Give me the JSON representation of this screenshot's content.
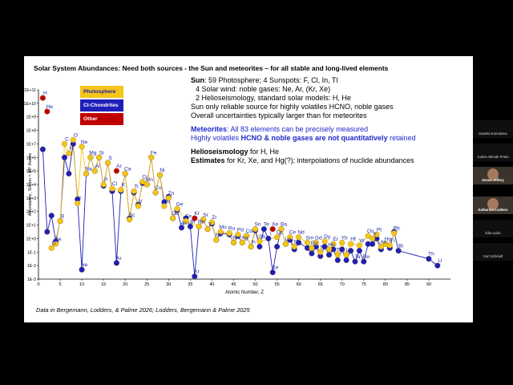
{
  "slide": {
    "title": "Solar System Abundances: Need both sources - the Sun and meteorites – for all stable and long-lived elements",
    "legend": [
      {
        "label": "Photosphere",
        "color": "#f5c518"
      },
      {
        "label": "CI-Chondrites",
        "color": "#1f1fb8"
      },
      {
        "label": "Other",
        "color": "#c00000"
      }
    ],
    "notes": {
      "sun_head": "Sun",
      "sun_rest": ": 59 Photosphere;  4 Sunspots: F, Cl, In, Tl",
      "sun_wind": "4 Solar wind: noble gases: Ne, Ar, (Kr, Xe)",
      "sun_helio": "2 Helioseismology, standard solar models: H, He",
      "sun_only": "Sun only reliable source for highly volatiles HCNO, noble gases",
      "sun_unc": "Overall uncertainties typically larger than for meteorites",
      "met_head": "Meteorites",
      "met_rest": ": All 83 elements can be precisely measured",
      "met_l2_a": "Highly volatiles ",
      "met_l2_b": "HCNO & noble gases are not quantitatively",
      "met_l2_c": " retained",
      "helio_head": "Helioseismology",
      "helio_rest": " for H, He",
      "est_head": "Estimates",
      "est_rest": " for Kr, Xe, and Hg(?); interpolations of nuclide abundances"
    },
    "footnote": "Data in Bergemann, Lodders, & Palme 2026;  Lodders, Bergemann & Palme 2025"
  },
  "participants": [
    {
      "name": "Daniela Korcakova",
      "video": false
    },
    {
      "name": "Carlos Allende Prieto",
      "video": false
    },
    {
      "name": "Simon Jeffery",
      "video": true
    },
    {
      "name": "Katharina Lodders",
      "video": true
    },
    {
      "name": "lidia cudro",
      "video": false
    },
    {
      "name": "Carl Schmidt",
      "video": false
    }
  ],
  "chart_data": {
    "type": "scatter",
    "title": "",
    "xlabel": "Atomic Number, Z",
    "ylabel": "Abundance, Silicon = 10⁶ Atoms",
    "xlim": [
      0,
      95
    ],
    "ylim": [
      -3,
      11
    ],
    "x_ticks": [
      0,
      5,
      10,
      15,
      20,
      25,
      30,
      35,
      40,
      45,
      50,
      55,
      60,
      65,
      70,
      75,
      80,
      85,
      90
    ],
    "y_ticks": [
      "1E-3",
      "1E-2",
      "1E-1",
      "1E+0",
      "1E+1",
      "1E+2",
      "1E+3",
      "1E+4",
      "1E+5",
      "1E+6",
      "1E+7",
      "1E+8",
      "1E+9",
      "1E+10",
      "1E+11"
    ],
    "series": [
      {
        "name": "Photosphere",
        "color": "#f5c518",
        "points": [
          [
            3,
            -0.7
          ],
          [
            4,
            -0.4
          ],
          [
            5,
            1.3
          ],
          [
            6,
            7.0
          ],
          [
            7,
            6.3
          ],
          [
            8,
            7.3
          ],
          [
            9,
            2.6
          ],
          [
            10,
            6.8
          ],
          [
            11,
            4.8
          ],
          [
            12,
            6.0
          ],
          [
            13,
            5.0
          ],
          [
            14,
            6.0
          ],
          [
            15,
            4.0
          ],
          [
            16,
            5.6
          ],
          [
            17,
            3.7
          ],
          [
            19,
            3.6
          ],
          [
            20,
            4.8
          ],
          [
            21,
            1.4
          ],
          [
            22,
            3.5
          ],
          [
            23,
            2.4
          ],
          [
            24,
            4.2
          ],
          [
            25,
            4.0
          ],
          [
            26,
            6.0
          ],
          [
            27,
            3.4
          ],
          [
            28,
            4.7
          ],
          [
            29,
            2.4
          ],
          [
            30,
            3.0
          ],
          [
            31,
            1.5
          ],
          [
            32,
            2.2
          ],
          [
            34,
            1.3
          ],
          [
            37,
            0.9
          ],
          [
            38,
            1.4
          ],
          [
            39,
            0.7
          ],
          [
            40,
            1.2
          ],
          [
            41,
            -0.1
          ],
          [
            42,
            0.5
          ],
          [
            44,
            0.4
          ],
          [
            45,
            -0.3
          ],
          [
            46,
            0.3
          ],
          [
            47,
            -0.3
          ],
          [
            48,
            0.2
          ],
          [
            49,
            -0.6
          ],
          [
            50,
            0.7
          ],
          [
            51,
            -0.2
          ],
          [
            55,
            0.1
          ],
          [
            56,
            0.7
          ],
          [
            57,
            -0.4
          ],
          [
            58,
            0.1
          ],
          [
            59,
            -0.6
          ],
          [
            60,
            0.1
          ],
          [
            62,
            -0.3
          ],
          [
            63,
            -0.7
          ],
          [
            64,
            -0.3
          ],
          [
            65,
            -1.0
          ],
          [
            66,
            -0.2
          ],
          [
            67,
            -0.8
          ],
          [
            68,
            -0.4
          ],
          [
            69,
            -1.2
          ],
          [
            70,
            -0.3
          ],
          [
            71,
            -1.2
          ],
          [
            72,
            -0.4
          ],
          [
            74,
            -0.5
          ],
          [
            76,
            0.2
          ],
          [
            77,
            0.0
          ],
          [
            78,
            0.3
          ],
          [
            79,
            -0.6
          ],
          [
            80,
            -0.4
          ],
          [
            81,
            -0.5
          ],
          [
            82,
            0.4
          ]
        ]
      },
      {
        "name": "CI-Chondrites",
        "color": "#1f1fb8",
        "points": [
          [
            1,
            6.6
          ],
          [
            2,
            0.5
          ],
          [
            3,
            1.7
          ],
          [
            4,
            -0.2
          ],
          [
            5,
            1.3
          ],
          [
            6,
            6.0
          ],
          [
            7,
            4.8
          ],
          [
            8,
            7.0
          ],
          [
            9,
            2.9
          ],
          [
            10,
            -2.3
          ],
          [
            11,
            4.8
          ],
          [
            12,
            6.0
          ],
          [
            13,
            5.0
          ],
          [
            14,
            6.0
          ],
          [
            15,
            3.9
          ],
          [
            16,
            5.6
          ],
          [
            17,
            3.5
          ],
          [
            18,
            -1.8
          ],
          [
            19,
            3.5
          ],
          [
            20,
            4.8
          ],
          [
            21,
            1.5
          ],
          [
            22,
            3.4
          ],
          [
            23,
            2.5
          ],
          [
            24,
            4.1
          ],
          [
            25,
            4.0
          ],
          [
            26,
            6.0
          ],
          [
            27,
            3.4
          ],
          [
            28,
            4.7
          ],
          [
            29,
            2.7
          ],
          [
            30,
            3.1
          ],
          [
            31,
            1.5
          ],
          [
            32,
            2.1
          ],
          [
            33,
            0.8
          ],
          [
            34,
            1.5
          ],
          [
            35,
            0.9
          ],
          [
            36,
            -2.8
          ],
          [
            37,
            0.9
          ],
          [
            38,
            1.4
          ],
          [
            39,
            0.7
          ],
          [
            40,
            1.1
          ],
          [
            41,
            -0.1
          ],
          [
            42,
            0.4
          ],
          [
            44,
            0.3
          ],
          [
            45,
            -0.3
          ],
          [
            46,
            0.2
          ],
          [
            47,
            -0.3
          ],
          [
            48,
            0.2
          ],
          [
            49,
            -0.6
          ],
          [
            50,
            0.6
          ],
          [
            51,
            -0.6
          ],
          [
            52,
            0.7
          ],
          [
            53,
            0.0
          ],
          [
            54,
            -2.5
          ],
          [
            55,
            -0.6
          ],
          [
            56,
            0.7
          ],
          [
            57,
            -0.4
          ],
          [
            58,
            -0.1
          ],
          [
            59,
            -0.8
          ],
          [
            60,
            -0.3
          ],
          [
            62,
            -0.7
          ],
          [
            63,
            -1.1
          ],
          [
            64,
            -0.6
          ],
          [
            65,
            -1.3
          ],
          [
            66,
            -0.6
          ],
          [
            67,
            -1.2
          ],
          [
            68,
            -0.8
          ],
          [
            69,
            -1.6
          ],
          [
            70,
            -0.8
          ],
          [
            71,
            -1.6
          ],
          [
            72,
            -0.9
          ],
          [
            73,
            -1.7
          ],
          [
            74,
            -0.9
          ],
          [
            75,
            -1.7
          ],
          [
            76,
            -0.4
          ],
          [
            77,
            -0.4
          ],
          [
            78,
            0.0
          ],
          [
            79,
            -0.8
          ],
          [
            80,
            -0.4
          ],
          [
            81,
            -0.7
          ],
          [
            82,
            0.5
          ],
          [
            83,
            -0.9
          ],
          [
            90,
            -1.5
          ],
          [
            92,
            -2.0
          ]
        ]
      },
      {
        "name": "Other",
        "color": "#c00000",
        "points": [
          [
            1,
            10.4
          ],
          [
            2,
            9.4
          ],
          [
            18,
            5.0
          ],
          [
            36,
            1.5
          ],
          [
            54,
            0.7
          ]
        ]
      }
    ],
    "labels": [
      [
        "H",
        1,
        10.4
      ],
      [
        "He",
        2,
        9.4
      ],
      [
        "Li",
        3,
        -0.7
      ],
      [
        "Be",
        4,
        -0.4
      ],
      [
        "B",
        5,
        1.3
      ],
      [
        "C",
        6,
        7.0
      ],
      [
        "N",
        7,
        6.3
      ],
      [
        "O",
        8,
        7.3
      ],
      [
        "F",
        9,
        2.6
      ],
      [
        "Ne",
        10,
        6.8
      ],
      [
        "Ne",
        10,
        -2.3
      ],
      [
        "Na",
        11,
        4.8
      ],
      [
        "Mg",
        12,
        6.0
      ],
      [
        "Al",
        13,
        5.0
      ],
      [
        "Si",
        14,
        6.0
      ],
      [
        "P",
        15,
        4.0
      ],
      [
        "S",
        16,
        5.6
      ],
      [
        "Cl",
        17,
        3.7
      ],
      [
        "Ar",
        18,
        5.0
      ],
      [
        "Ar",
        18,
        -1.8
      ],
      [
        "K",
        19,
        3.6
      ],
      [
        "Ca",
        20,
        4.8
      ],
      [
        "Sc",
        21,
        1.4
      ],
      [
        "Ti",
        22,
        3.5
      ],
      [
        "V",
        23,
        2.4
      ],
      [
        "Cr",
        24,
        4.2
      ],
      [
        "Mn",
        25,
        4.0
      ],
      [
        "Fe",
        26,
        6.0
      ],
      [
        "Co",
        27,
        3.4
      ],
      [
        "Ni",
        28,
        4.7
      ],
      [
        "Cu",
        29,
        2.4
      ],
      [
        "Zn",
        30,
        3.0
      ],
      [
        "Ga",
        31,
        1.5
      ],
      [
        "Ge",
        32,
        2.2
      ],
      [
        "As",
        33,
        0.8
      ],
      [
        "Se",
        34,
        1.3
      ],
      [
        "Br",
        35,
        0.9
      ],
      [
        "Kr",
        36,
        1.5
      ],
      [
        "Kr",
        36,
        -2.8
      ],
      [
        "Rb",
        37,
        0.9
      ],
      [
        "Sr",
        38,
        1.4
      ],
      [
        "Y",
        39,
        0.7
      ],
      [
        "Zr",
        40,
        1.2
      ],
      [
        "Nb",
        41,
        -0.1
      ],
      [
        "Mo",
        42,
        0.5
      ],
      [
        "Ru",
        44,
        0.4
      ],
      [
        "Rh",
        45,
        -0.3
      ],
      [
        "Pd",
        46,
        0.3
      ],
      [
        "Ag",
        47,
        -0.3
      ],
      [
        "Cd",
        48,
        0.2
      ],
      [
        "In",
        49,
        -0.6
      ],
      [
        "Sn",
        50,
        0.7
      ],
      [
        "Sb",
        51,
        -0.2
      ],
      [
        "Te",
        52,
        0.7
      ],
      [
        "I",
        53,
        0.0
      ],
      [
        "Xe",
        54,
        0.7
      ],
      [
        "Xe",
        54,
        -2.5
      ],
      [
        "Cs",
        55,
        0.1
      ],
      [
        "Ba",
        56,
        0.7
      ],
      [
        "La",
        57,
        -0.4
      ],
      [
        "Ce",
        58,
        0.1
      ],
      [
        "Pr",
        59,
        -0.6
      ],
      [
        "Nd",
        60,
        0.1
      ],
      [
        "Sm",
        62,
        -0.3
      ],
      [
        "Eu",
        63,
        -0.7
      ],
      [
        "Gd",
        64,
        -0.3
      ],
      [
        "Tb",
        65,
        -1.0
      ],
      [
        "Dy",
        66,
        -0.2
      ],
      [
        "Ho",
        67,
        -0.8
      ],
      [
        "Er",
        68,
        -0.4
      ],
      [
        "Tm",
        69,
        -1.2
      ],
      [
        "Yb",
        70,
        -0.3
      ],
      [
        "Lu",
        71,
        -1.2
      ],
      [
        "Hf",
        72,
        -0.4
      ],
      [
        "Ta",
        73,
        -1.7
      ],
      [
        "W",
        74,
        -0.5
      ],
      [
        "Re",
        75,
        -1.7
      ],
      [
        "Os",
        76,
        0.2
      ],
      [
        "Ir",
        77,
        0.0
      ],
      [
        "Pt",
        78,
        0.3
      ],
      [
        "Au",
        79,
        -0.6
      ],
      [
        "Hg",
        80,
        -0.4
      ],
      [
        "Tl",
        81,
        -0.5
      ],
      [
        "Pb",
        82,
        0.4
      ],
      [
        "Bi",
        83,
        -0.9
      ],
      [
        "Th",
        90,
        -1.5
      ],
      [
        "U",
        92,
        -2.0
      ]
    ]
  }
}
